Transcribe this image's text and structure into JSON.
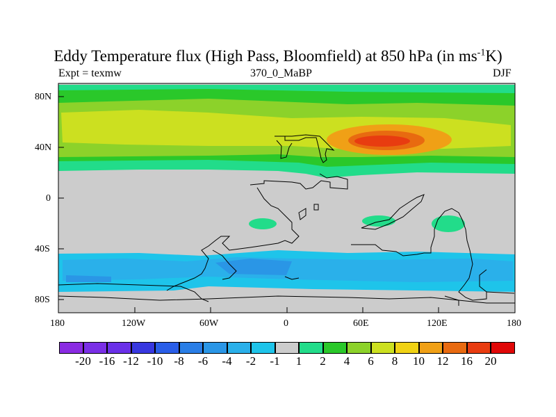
{
  "title": {
    "main": "Eddy Temperature flux (High Pass, Bloomfield) at 850 hPa (in ms",
    "superscript": "-1",
    "suffix": "K)"
  },
  "subtitle_left": "Expt = texmw",
  "subtitle_center": "370_0_MaBP",
  "subtitle_right": "DJF",
  "axes": {
    "lat_ticks": [
      "80N",
      "40N",
      "0",
      "40S",
      "80S"
    ],
    "lon_ticks": [
      "180",
      "120W",
      "60W",
      "0",
      "60E",
      "120E",
      "180"
    ]
  },
  "colorbar": {
    "labels": [
      "-20",
      "-16",
      "-12",
      "-10",
      "-8",
      "-6",
      "-4",
      "-2",
      "-1",
      "1",
      "2",
      "4",
      "6",
      "8",
      "10",
      "12",
      "16",
      "20"
    ],
    "colors": [
      "#8a2be2",
      "#7a2fe6",
      "#6a30e8",
      "#3838e0",
      "#2a5ee8",
      "#2a7ee6",
      "#2a96e6",
      "#2ab0ea",
      "#1ec4ea",
      "#cccccc",
      "#22dc8a",
      "#2ac82a",
      "#8cd22a",
      "#cce020",
      "#f0d214",
      "#f0a016",
      "#e86a10",
      "#e83c10",
      "#e00808"
    ]
  },
  "palette": {
    "background": "#cccccc",
    "yellow": "#cce020",
    "yellowgreen": "#8cd22a",
    "green": "#2ac82a",
    "teal": "#22dc8a",
    "lightblue": "#1ec4ea",
    "blue": "#2ab0ea",
    "midblue": "#2a96e6",
    "orange": "#f0a016",
    "darkorange": "#e86a10",
    "red": "#e83c10"
  }
}
